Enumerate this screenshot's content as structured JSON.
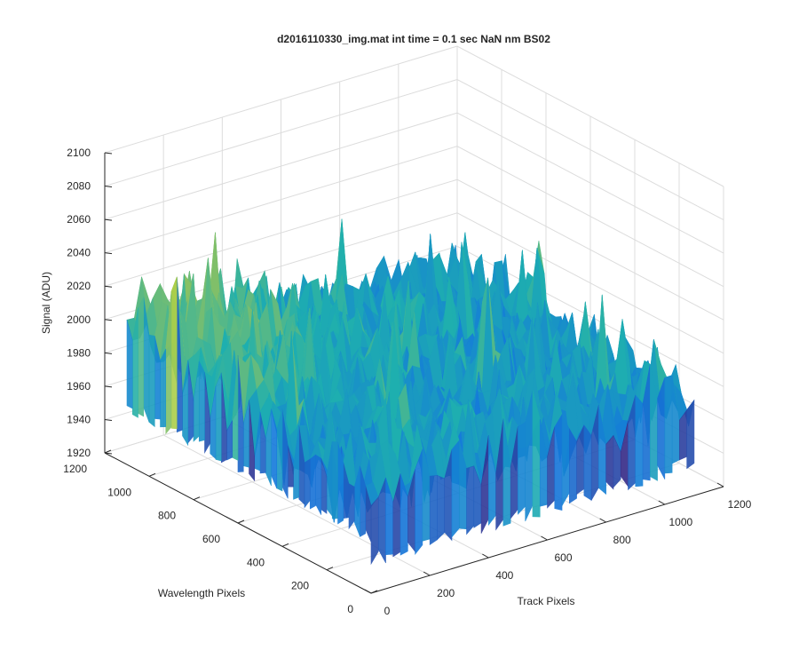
{
  "chart_data": {
    "type": "surface",
    "title": "d2016110330_img.mat int time = 0.1 sec  NaN nm BS02",
    "xlabel": "Track Pixels",
    "ylabel": "Wavelength Pixels",
    "zlabel": "Signal (ADU)",
    "xlim": [
      0,
      1200
    ],
    "ylim": [
      0,
      1200
    ],
    "zlim": [
      1920,
      2100
    ],
    "xticks": [
      "0",
      "200",
      "400",
      "600",
      "800",
      "1000",
      "1200"
    ],
    "yticks": [
      "0",
      "200",
      "400",
      "600",
      "800",
      "1000",
      "1200"
    ],
    "zticks": [
      "1920",
      "1940",
      "1960",
      "1980",
      "2000",
      "2020",
      "2040",
      "2060",
      "2080",
      "2100"
    ],
    "grid": true,
    "colormap": "parula",
    "data_extent": {
      "track_max": 1100,
      "wavelength_max": 1100
    },
    "signal_summary": {
      "baseline": 1990,
      "noise_range": [
        1925,
        2075
      ],
      "elevated_region": "high wavelength pixels, low track pixels (≈2000–2040)"
    },
    "colors": {
      "low": "#1a73d6",
      "mid": "#23b3b0",
      "high": "#d4c63a"
    }
  }
}
